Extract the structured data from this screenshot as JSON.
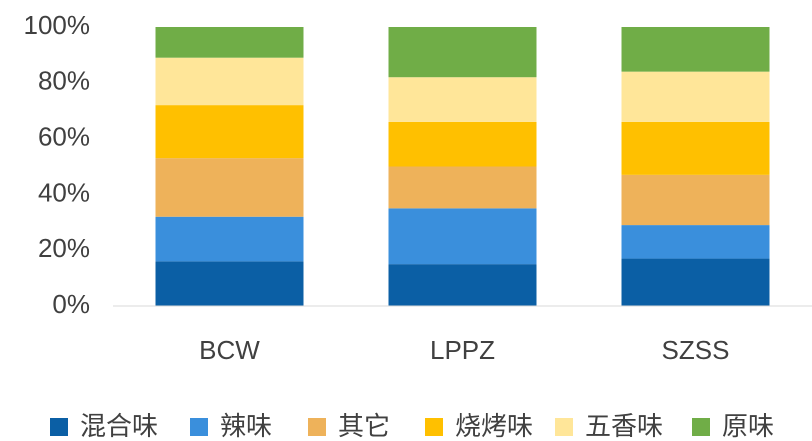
{
  "chart_data": {
    "type": "stacked_bar",
    "categories": [
      "BCW",
      "LPPZ",
      "SZSS"
    ],
    "series": [
      {
        "name": "混合味",
        "color": "#0b5fa5",
        "values": [
          16,
          15,
          17
        ]
      },
      {
        "name": "辣味",
        "color": "#3a8fdc",
        "values": [
          16,
          20,
          12
        ]
      },
      {
        "name": "其它",
        "color": "#eeb25a",
        "values": [
          21,
          15,
          18
        ]
      },
      {
        "name": "烧烤味",
        "color": "#ffc000",
        "values": [
          19,
          16,
          19
        ]
      },
      {
        "name": "五香味",
        "color": "#ffe699",
        "values": [
          17,
          16,
          18
        ]
      },
      {
        "name": "原味",
        "color": "#70ad47",
        "values": [
          11,
          18,
          16
        ]
      }
    ],
    "ylim": [
      0,
      100
    ],
    "yticks": [
      {
        "value": 0,
        "label": "0%"
      },
      {
        "value": 20,
        "label": "20%"
      },
      {
        "value": 40,
        "label": "40%"
      },
      {
        "value": 60,
        "label": "60%"
      },
      {
        "value": 80,
        "label": "80%"
      },
      {
        "value": 100,
        "label": "100%"
      }
    ],
    "grid": false,
    "legend": "bottom"
  }
}
